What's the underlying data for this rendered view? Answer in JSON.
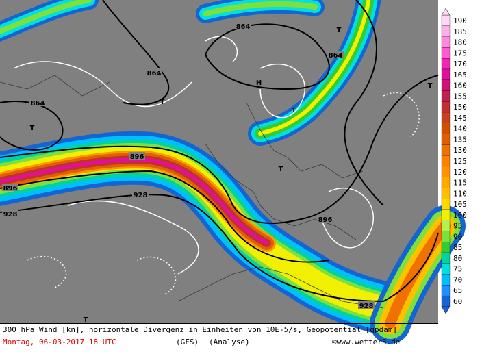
{
  "map": {
    "caption": "300 hPa Wind [kn], horizontale Divergenz in Einheiten von 10E-5/s, Geopotential [gpdam]",
    "date": "Montag, 06-03-2017  18 UTC",
    "model": "(GFS)",
    "run": "(Analyse)",
    "credit": "©www.wetter3.de",
    "contour_labels": [
      "864",
      "864",
      "864",
      "864",
      "896",
      "896",
      "896",
      "928",
      "928",
      "928"
    ],
    "pressure_marks": [
      "T",
      "T",
      "T",
      "T",
      "T",
      "T",
      "T",
      "H"
    ],
    "legend": {
      "levels": [
        190,
        185,
        180,
        175,
        170,
        165,
        160,
        155,
        150,
        145,
        140,
        135,
        130,
        125,
        120,
        115,
        110,
        105,
        100,
        95,
        90,
        85,
        80,
        75,
        70,
        65,
        60
      ],
      "colors": [
        "#ffd8f4",
        "#ffb0ea",
        "#ff88de",
        "#ff5cd0",
        "#f028b8",
        "#e0109a",
        "#d0107a",
        "#c02050",
        "#c03030",
        "#c84020",
        "#d05000",
        "#e06000",
        "#f07000",
        "#ff8000",
        "#ff9400",
        "#ffa800",
        "#ffc000",
        "#ffd800",
        "#f0f000",
        "#b4f050",
        "#7ee03c",
        "#32cd32",
        "#00d2a0",
        "#00e0e0",
        "#00bfff",
        "#1e90ff",
        "#1464d2"
      ]
    }
  }
}
